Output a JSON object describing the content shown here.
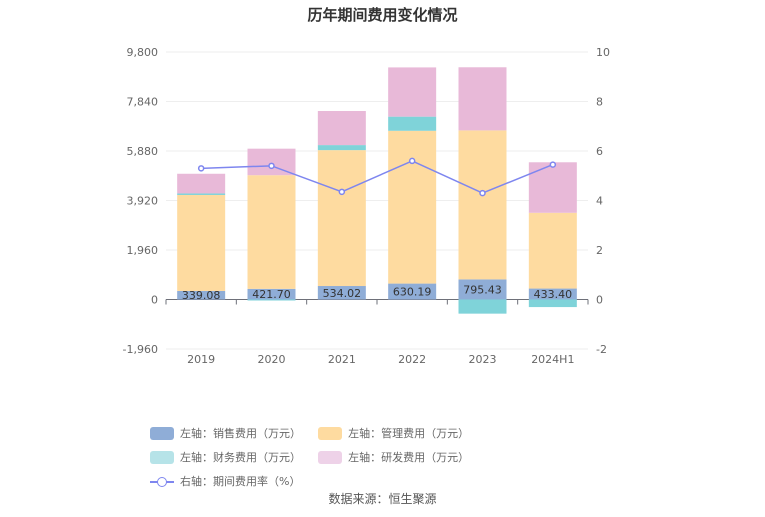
{
  "chart_data": {
    "type": "bar",
    "title": "历年期间费用变化情况",
    "source": "数据来源：恒生聚源",
    "categories": [
      "2019",
      "2020",
      "2021",
      "2022",
      "2023",
      "2024H1"
    ],
    "y_left": {
      "ticks": [
        -1960,
        0,
        1960,
        3920,
        5880,
        7840,
        9800
      ],
      "tick_labels": [
        "-1,960",
        "0",
        "1,960",
        "3,920",
        "5,880",
        "7,840",
        "9,800"
      ],
      "range": [
        -1960,
        9800
      ]
    },
    "y_right": {
      "ticks": [
        -2,
        0,
        2,
        4,
        6,
        8,
        10
      ],
      "tick_labels": [
        "-2",
        "0",
        "2",
        "4",
        "6",
        "8",
        "10"
      ],
      "range": [
        -2,
        10
      ]
    },
    "stacked": true,
    "series": [
      {
        "name": "左轴：销售费用（万元）",
        "axis": "left",
        "type": "bar",
        "color": "#8fadd7",
        "values": [
          339.08,
          421.7,
          534.02,
          630.19,
          795.43,
          433.4
        ],
        "labels": [
          "339.08",
          "421.70",
          "534.02",
          "630.19",
          "795.43",
          "433.40"
        ]
      },
      {
        "name": "左轴：管理费用（万元）",
        "axis": "left",
        "type": "bar",
        "color": "#fedba0",
        "values": [
          3800,
          4500,
          5380,
          6050,
          5900,
          3000
        ]
      },
      {
        "name": "左轴：财务费用（万元）",
        "axis": "left",
        "type": "bar",
        "color": "#7fd3d9",
        "values": [
          60,
          -40,
          200,
          560,
          -560,
          -300
        ]
      },
      {
        "name": "左轴：研发费用（万元）",
        "axis": "left",
        "type": "bar",
        "color": "#e8b9d8",
        "values": [
          780,
          1050,
          1350,
          1950,
          2500,
          2000
        ]
      },
      {
        "name": "右轴：期间费用率（%）",
        "axis": "right",
        "type": "line",
        "color": "#7e86ef",
        "values": [
          5.3,
          5.4,
          4.35,
          5.6,
          4.3,
          5.45
        ]
      }
    ],
    "grid": true,
    "legend_position": "bottom"
  }
}
